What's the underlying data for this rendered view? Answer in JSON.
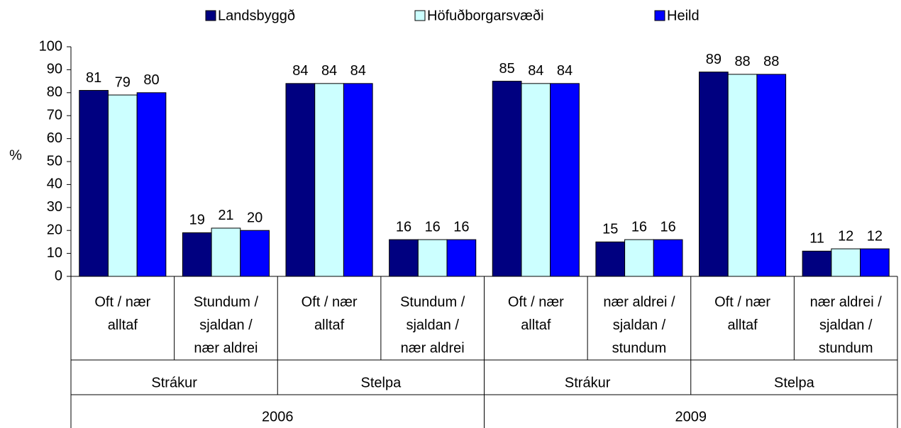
{
  "chart_data": {
    "type": "bar",
    "y_label": "%",
    "categories": [
      [
        "Oft / nær",
        "alltaf"
      ],
      [
        "Stundum /",
        "sjaldan /",
        "nær aldrei"
      ],
      [
        "Oft / nær",
        "alltaf"
      ],
      [
        "Stundum /",
        "sjaldan /",
        "nær aldrei"
      ],
      [
        "Oft / nær",
        "alltaf"
      ],
      [
        "nær aldrei /",
        "sjaldan /",
        "stundum"
      ],
      [
        "Oft / nær",
        "alltaf"
      ],
      [
        "nær aldrei /",
        "sjaldan /",
        "stundum"
      ]
    ],
    "category_groups": [
      "Strákur",
      "Stelpa",
      "Strákur",
      "Stelpa"
    ],
    "category_supergroups": [
      "2006",
      "2009"
    ],
    "series": [
      {
        "name": "Landsbyggð",
        "color": "#000080",
        "values": [
          81,
          19,
          84,
          16,
          85,
          15,
          89,
          11
        ]
      },
      {
        "name": "Höfuðborgarsvæði",
        "color": "#ccffff",
        "values": [
          79,
          21,
          84,
          16,
          84,
          16,
          88,
          12
        ]
      },
      {
        "name": "Heild",
        "color": "#0000ff",
        "values": [
          80,
          20,
          84,
          16,
          84,
          16,
          88,
          12
        ]
      }
    ],
    "ylim": [
      0,
      100
    ],
    "yticks": [
      0,
      10,
      20,
      30,
      40,
      50,
      60,
      70,
      80,
      90,
      100
    ],
    "grid": false,
    "legend": "top"
  }
}
